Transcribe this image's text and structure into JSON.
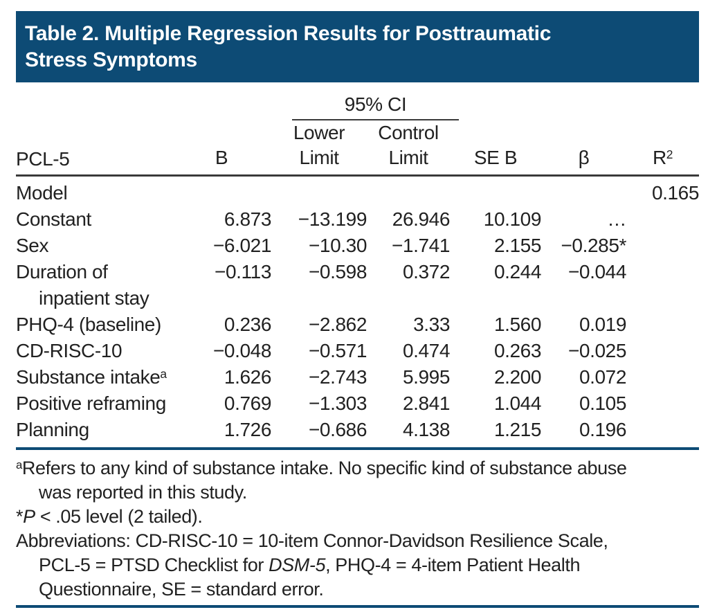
{
  "page": {
    "accent_blue": "#0d4b75",
    "rule_dark": "#3a3a3a",
    "text_color": "#212121",
    "background": "#ffffff"
  },
  "header": {
    "title": "Table 2. Multiple Regression Results for Posttraumatic Stress Symptoms",
    "title_lines": [
      "Table 2. Multiple Regression Results for Posttraumatic",
      "Stress Symptoms"
    ]
  },
  "table": {
    "ci_group_label": "95% CI",
    "columns": {
      "stub": "PCL-5",
      "b": "B",
      "lower_line1": "Lower",
      "lower_line2": "Limit",
      "control_line1": "Control",
      "control_line2": "Limit",
      "se": "SE B",
      "beta": "β",
      "r2_base": "R",
      "r2_sup": "2"
    },
    "rows": [
      {
        "label": "Model",
        "b": "",
        "lower": "",
        "control": "",
        "se": "",
        "beta": "",
        "r2": "0.165"
      },
      {
        "label": "Constant",
        "b": "6.873",
        "lower": "−13.199",
        "control": "26.946",
        "se": "10.109",
        "beta": "…",
        "r2": ""
      },
      {
        "label": "Sex",
        "b": "−6.021",
        "lower": "−10.30",
        "control": "−1.741",
        "se": "2.155",
        "beta": "−0.285*",
        "r2": ""
      },
      {
        "label": "Duration of",
        "label_line2": "inpatient stay",
        "b": "−0.113",
        "lower": "−0.598",
        "control": "0.372",
        "se": "0.244",
        "beta": "−0.044",
        "r2": ""
      },
      {
        "label": "PHQ-4 (baseline)",
        "b": "0.236",
        "lower": "−2.862",
        "control": "3.33",
        "se": "1.560",
        "beta": "0.019",
        "r2": ""
      },
      {
        "label": "CD-RISC-10",
        "b": "−0.048",
        "lower": "−0.571",
        "control": "0.474",
        "se": "0.263",
        "beta": "−0.025",
        "r2": ""
      },
      {
        "label": "Substance intake",
        "label_sup": "a",
        "b": "1.626",
        "lower": "−2.743",
        "control": "5.995",
        "se": "2.200",
        "beta": "0.072",
        "r2": ""
      },
      {
        "label": "Positive reframing",
        "b": "0.769",
        "lower": "−1.303",
        "control": "2.841",
        "se": "1.044",
        "beta": "0.105",
        "r2": ""
      },
      {
        "label": "Planning",
        "b": "1.726",
        "lower": "−0.686",
        "control": "4.138",
        "se": "1.215",
        "beta": "0.196",
        "r2": ""
      }
    ]
  },
  "footnotes": {
    "lines": [
      {
        "indent": false,
        "segments": [
          {
            "style": "sup",
            "text": "a"
          },
          {
            "style": "normal",
            "text": "Refers to any kind of substance intake. No specific kind of substance abuse"
          }
        ]
      },
      {
        "indent": true,
        "segments": [
          {
            "style": "normal",
            "text": "was reported in this study."
          }
        ]
      },
      {
        "indent": false,
        "segments": [
          {
            "style": "normal",
            "text": "*"
          },
          {
            "style": "italic",
            "text": "P"
          },
          {
            "style": "normal",
            "text": " < .05 level (2 tailed)."
          }
        ]
      },
      {
        "indent": false,
        "segments": [
          {
            "style": "normal",
            "text": "Abbreviations: CD-RISC-10 = 10-item Connor-Davidson Resilience Scale,"
          }
        ]
      },
      {
        "indent": true,
        "segments": [
          {
            "style": "normal",
            "text": "PCL-5 = PTSD Checklist for "
          },
          {
            "style": "italic",
            "text": "DSM-5"
          },
          {
            "style": "normal",
            "text": ", PHQ-4 = 4-item Patient Health"
          }
        ]
      },
      {
        "indent": true,
        "segments": [
          {
            "style": "normal",
            "text": "Questionnaire, SE = standard error."
          }
        ]
      }
    ]
  },
  "chart_data": {
    "type": "table",
    "title": "Table 2. Multiple Regression Results for Posttraumatic Stress Symptoms",
    "column_group": {
      "label": "95% CI",
      "spans": [
        "Lower Limit",
        "Control Limit"
      ]
    },
    "columns": [
      "PCL-5",
      "B",
      "Lower Limit",
      "Control Limit",
      "SE B",
      "β",
      "R2"
    ],
    "rows": [
      [
        "Model",
        "",
        "",
        "",
        "",
        "",
        "0.165"
      ],
      [
        "Constant",
        "6.873",
        "−13.199",
        "26.946",
        "10.109",
        "…",
        ""
      ],
      [
        "Sex",
        "−6.021",
        "−10.30",
        "−1.741",
        "2.155",
        "−0.285*",
        ""
      ],
      [
        "Duration of inpatient stay",
        "−0.113",
        "−0.598",
        "0.372",
        "0.244",
        "−0.044",
        ""
      ],
      [
        "PHQ-4 (baseline)",
        "0.236",
        "−2.862",
        "3.33",
        "1.560",
        "0.019",
        ""
      ],
      [
        "CD-RISC-10",
        "−0.048",
        "−0.571",
        "0.474",
        "0.263",
        "−0.025",
        ""
      ],
      [
        "Substance intake (a)",
        "1.626",
        "−2.743",
        "5.995",
        "2.200",
        "0.072",
        ""
      ],
      [
        "Positive reframing",
        "0.769",
        "−1.303",
        "2.841",
        "1.044",
        "0.105",
        ""
      ],
      [
        "Planning",
        "1.726",
        "−0.686",
        "4.138",
        "1.215",
        "0.196",
        ""
      ]
    ]
  }
}
